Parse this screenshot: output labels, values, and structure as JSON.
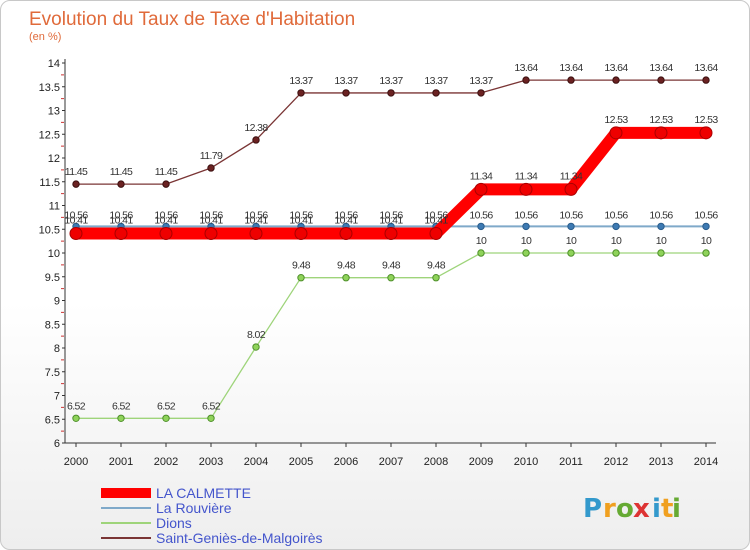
{
  "chart_data": {
    "type": "line",
    "title": "Evolution du Taux de Taxe d'Habitation",
    "subtitle": "(en %)",
    "x": [
      "2000",
      "2001",
      "2002",
      "2003",
      "2004",
      "2005",
      "2006",
      "2007",
      "2008",
      "2009",
      "2010",
      "2011",
      "2012",
      "2013",
      "2014"
    ],
    "ylim": [
      6,
      14
    ],
    "yticks": [
      "6",
      "6.5",
      "7",
      "7.5",
      "8",
      "8.5",
      "9",
      "9.5",
      "10",
      "10.5",
      "11",
      "11.5",
      "12",
      "12.5",
      "13",
      "13.5",
      "14"
    ],
    "grid": false,
    "legend_position": "bottom-left",
    "series": [
      {
        "name": "LA CALMETTE",
        "color": "#ff0000",
        "labels": [
          "10.41",
          "10.41",
          "10.41",
          "10.41",
          "10.41",
          "10.41",
          "10.41",
          "10.41",
          "10.41",
          "11.34",
          "11.34",
          "11.34",
          "12.53",
          "12.53",
          "12.53"
        ],
        "values": [
          10.41,
          10.41,
          10.41,
          10.41,
          10.41,
          10.41,
          10.41,
          10.41,
          10.41,
          11.34,
          11.34,
          11.34,
          12.53,
          12.53,
          12.53
        ]
      },
      {
        "name": "La Rouvière",
        "color": "#7fa9c9",
        "labels": [
          "10.56",
          "10.56",
          "10.56",
          "10.56",
          "10.56",
          "10.56",
          "10.56",
          "10.56",
          "10.56",
          "10.56",
          "10.56",
          "10.56",
          "10.56",
          "10.56",
          "10.56"
        ],
        "values": [
          10.56,
          10.56,
          10.56,
          10.56,
          10.56,
          10.56,
          10.56,
          10.56,
          10.56,
          10.56,
          10.56,
          10.56,
          10.56,
          10.56,
          10.56
        ]
      },
      {
        "name": "Dions",
        "color": "#9ed47a",
        "labels": [
          "6.52",
          "6.52",
          "6.52",
          "6.52",
          "8.02",
          "9.48",
          "9.48",
          "9.48",
          "9.48",
          "10",
          "10",
          "10",
          "10",
          "10",
          "10"
        ],
        "values": [
          6.52,
          6.52,
          6.52,
          6.52,
          8.02,
          9.48,
          9.48,
          9.48,
          9.48,
          10,
          10,
          10,
          10,
          10,
          10
        ]
      },
      {
        "name": "Saint-Geniès-de-Malgoirès",
        "color": "#7a3535",
        "labels": [
          "11.45",
          "11.45",
          "11.45",
          "11.79",
          "12.38",
          "13.37",
          "13.37",
          "13.37",
          "13.37",
          "13.37",
          "13.64",
          "13.64",
          "13.64",
          "13.64",
          "13.64"
        ],
        "values": [
          11.45,
          11.45,
          11.45,
          11.79,
          12.38,
          13.37,
          13.37,
          13.37,
          13.37,
          13.37,
          13.64,
          13.64,
          13.64,
          13.64,
          13.64
        ]
      }
    ]
  },
  "brand": {
    "letters": [
      "P",
      "r",
      "o",
      "x",
      "i",
      "t",
      "i"
    ],
    "colors": [
      "#3399cc",
      "#f0a020",
      "#66aa33",
      "#dd3333",
      "#3399cc",
      "#f0a020",
      "#66aa33"
    ]
  }
}
